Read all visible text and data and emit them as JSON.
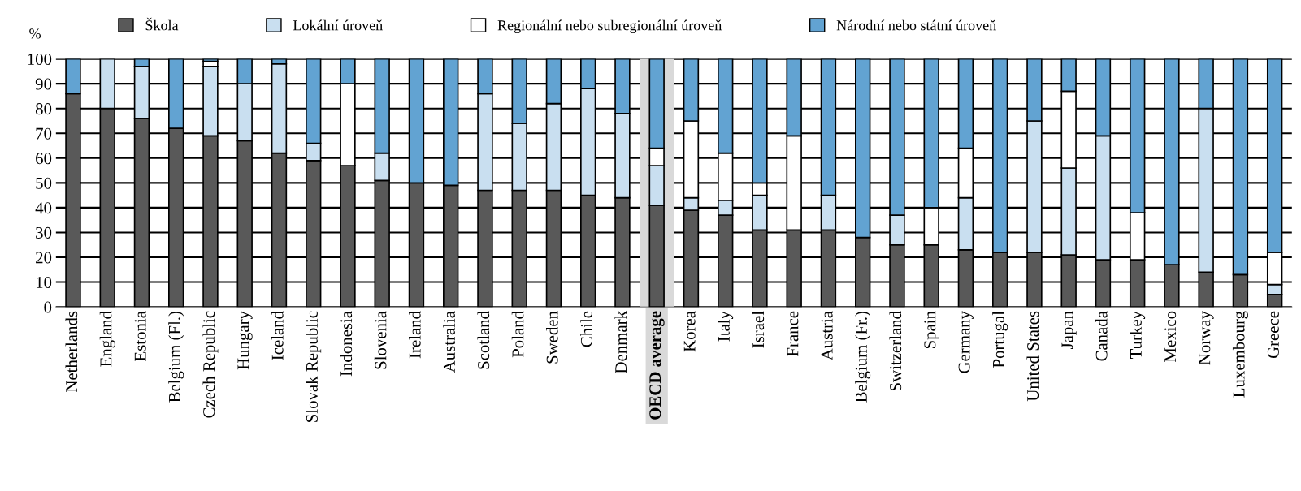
{
  "chart_data": {
    "type": "bar",
    "stacked": true,
    "ylabel": "%",
    "categories": [
      "Netherlands",
      "England",
      "Estonia",
      "Belgium (Fl.)",
      "Czech Republic",
      "Hungary",
      "Iceland",
      "Slovak Republic",
      "Indonesia",
      "Slovenia",
      "Ireland",
      "Australia",
      "Scotland",
      "Poland",
      "Sweden",
      "Chile",
      "Denmark",
      "OECD average",
      "Korea",
      "Italy",
      "Israel",
      "France",
      "Austria",
      "Belgium (Fr.)",
      "Switzerland",
      "Spain",
      "Germany",
      "Portugal",
      "United States",
      "Japan",
      "Canada",
      "Turkey",
      "Mexico",
      "Norway",
      "Luxembourg",
      "Greece"
    ],
    "series": [
      {
        "name": "Škola",
        "color": "#595959",
        "values": [
          86,
          80,
          76,
          72,
          69,
          67,
          62,
          59,
          57,
          51,
          50,
          49,
          47,
          47,
          47,
          45,
          44,
          41,
          39,
          37,
          31,
          31,
          31,
          28,
          25,
          25,
          23,
          22,
          22,
          21,
          19,
          19,
          17,
          14,
          13,
          5
        ]
      },
      {
        "name": "Lokální úroveň",
        "color": "#c9dff0",
        "values": [
          null,
          20,
          21,
          null,
          28,
          23,
          36,
          7,
          null,
          11,
          null,
          null,
          39,
          27,
          35,
          43,
          34,
          16,
          5,
          6,
          14,
          null,
          14,
          null,
          12,
          null,
          21,
          null,
          53,
          35,
          50,
          null,
          null,
          66,
          null,
          4
        ]
      },
      {
        "name": "Regionální nebo subregionální úroveň",
        "color": "#ffffff",
        "values": [
          null,
          null,
          null,
          null,
          2,
          null,
          null,
          null,
          33,
          null,
          null,
          null,
          null,
          null,
          null,
          null,
          null,
          7,
          31,
          19,
          5,
          38,
          null,
          null,
          null,
          15,
          20,
          null,
          null,
          31,
          null,
          19,
          null,
          null,
          null,
          13
        ]
      },
      {
        "name": "Národní nebo státní úroveň",
        "color": "#62a3d2",
        "values": [
          14,
          null,
          3,
          28,
          1,
          10,
          2,
          34,
          10,
          38,
          50,
          51,
          14,
          26,
          18,
          12,
          22,
          36,
          25,
          38,
          50,
          31,
          55,
          72,
          63,
          60,
          36,
          78,
          25,
          13,
          31,
          62,
          83,
          20,
          87,
          78
        ]
      }
    ],
    "ylim": [
      0,
      100
    ],
    "yticks": [
      0,
      10,
      20,
      30,
      40,
      50,
      60,
      70,
      80,
      90,
      100
    ],
    "grid": "y",
    "legend": "top",
    "bands": [
      {
        "axis": "x",
        "from": "OECD average",
        "to": "OECD average",
        "color": "#d9d9d9"
      }
    ]
  }
}
